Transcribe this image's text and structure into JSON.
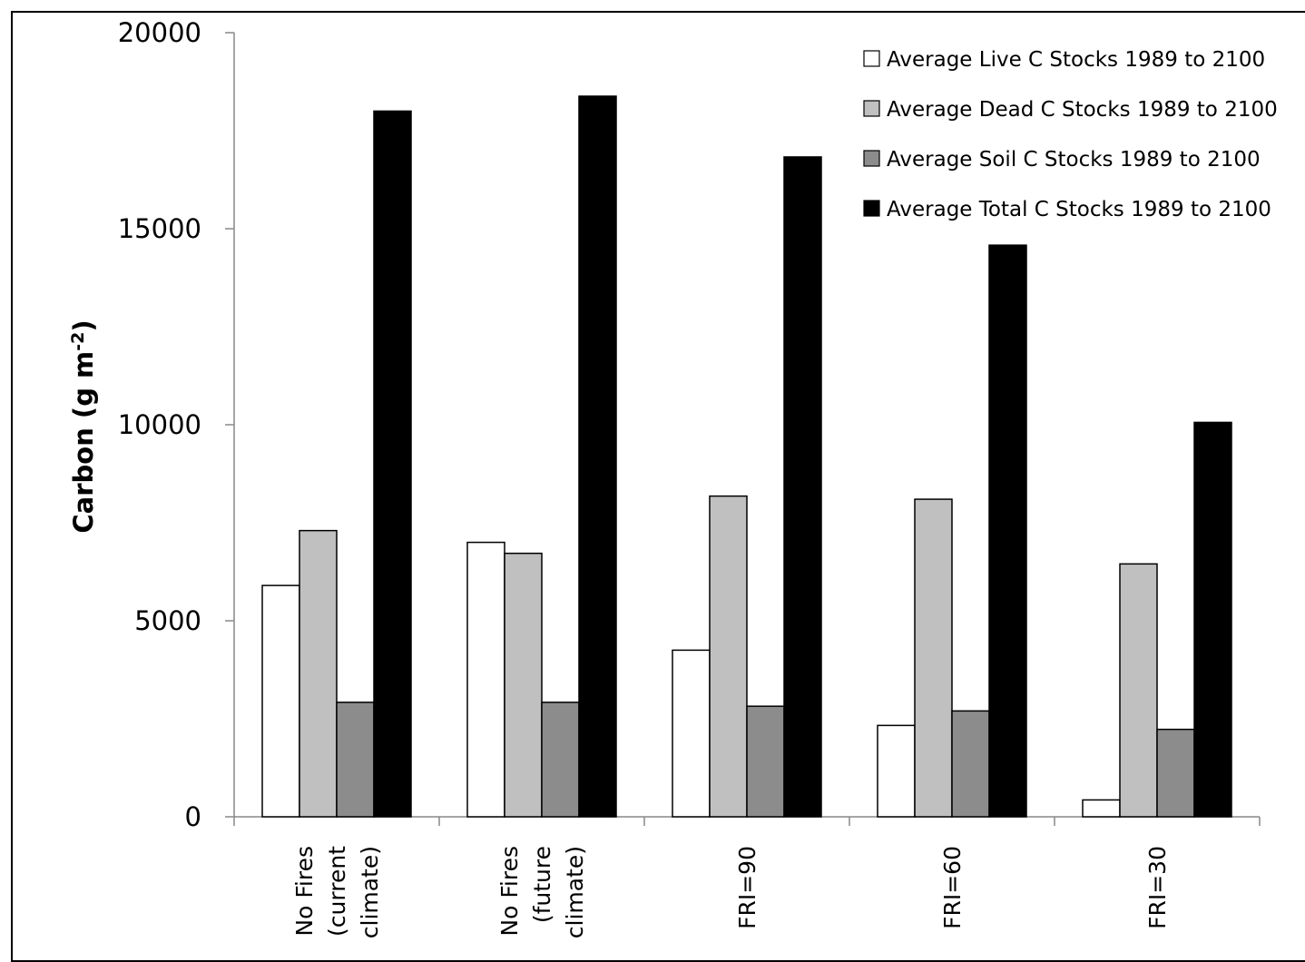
{
  "chart_data": {
    "type": "bar",
    "title": "",
    "xlabel": "",
    "ylabel": "Carbon (g m",
    "ylabel_sup": "-2",
    "ylabel_close": ")",
    "ylim": [
      0,
      20000
    ],
    "yticks": [
      0,
      5000,
      10000,
      15000,
      20000
    ],
    "categories": [
      [
        "No Fires",
        "(current",
        "climate)"
      ],
      [
        "No Fires",
        "(future",
        "climate)"
      ],
      [
        "FRI=90"
      ],
      [
        "FRI=60"
      ],
      [
        "FRI=30"
      ]
    ],
    "series": [
      {
        "name": "Average Live C Stocks 1989 to 2100",
        "color": "#ffffff",
        "values": [
          5900,
          7000,
          4250,
          2330,
          430
        ]
      },
      {
        "name": "Average Dead C Stocks 1989 to 2100",
        "color": "#c0c0c0",
        "values": [
          7300,
          6720,
          8180,
          8100,
          6450
        ]
      },
      {
        "name": "Average Soil C Stocks 1989 to 2100",
        "color": "#8c8c8c",
        "values": [
          2920,
          2920,
          2820,
          2700,
          2230
        ]
      },
      {
        "name": "Average Total C Stocks 1989 to 2100",
        "color": "#000000",
        "values": [
          18000,
          18380,
          16830,
          14580,
          10060
        ]
      }
    ],
    "legend_position": "top-right",
    "grid": false
  }
}
